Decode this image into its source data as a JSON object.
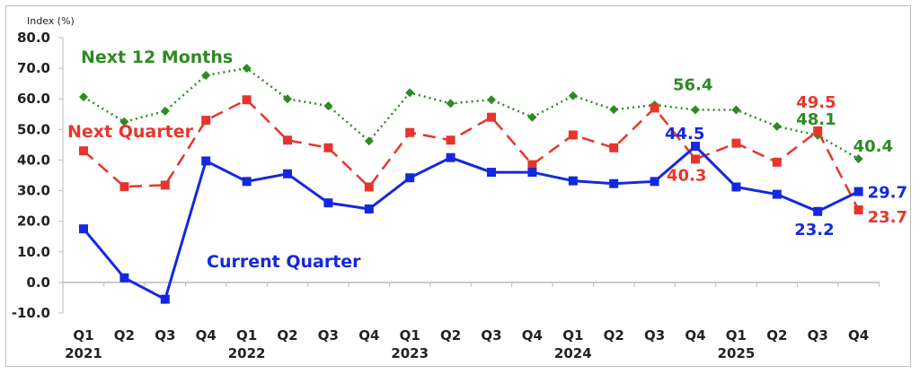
{
  "chart_data": {
    "type": "line",
    "title": "",
    "ylabel": "Index (%)",
    "ylim": [
      -10,
      80
    ],
    "yticks": [
      "80.0",
      "70.0",
      "60.0",
      "50.0",
      "40.0",
      "30.0",
      "20.0",
      "10.0",
      "0.0",
      "-10.0"
    ],
    "ytick_values": [
      80,
      70,
      60,
      50,
      40,
      30,
      20,
      10,
      0,
      -10
    ],
    "quarters": [
      "Q1",
      "Q2",
      "Q3",
      "Q4",
      "Q1",
      "Q2",
      "Q3",
      "Q4",
      "Q1",
      "Q2",
      "Q3",
      "Q4",
      "Q1",
      "Q2",
      "Q3",
      "Q4",
      "Q1",
      "Q2",
      "Q3",
      "Q4"
    ],
    "years": [
      {
        "label": "2021",
        "index": 0
      },
      {
        "label": "2022",
        "index": 4
      },
      {
        "label": "2023",
        "index": 8
      },
      {
        "label": "2024",
        "index": 12
      },
      {
        "label": "2025",
        "index": 16
      }
    ],
    "grid": false,
    "legend": "inline labels",
    "series": [
      {
        "name": "Next 12 Months",
        "color": "#2e8b22",
        "style": "dotted",
        "marker": "diamond",
        "values": [
          60.6,
          52.5,
          56.0,
          67.7,
          70.0,
          60.0,
          57.7,
          46.2,
          62.0,
          58.5,
          59.7,
          54.0,
          61.0,
          56.5,
          58.0,
          56.4,
          56.4,
          51.0,
          48.1,
          40.4
        ],
        "labels": [
          {
            "index": 15,
            "text": "56.4"
          },
          {
            "index": 18,
            "text": "48.1"
          },
          {
            "index": 19,
            "text": "40.4"
          }
        ]
      },
      {
        "name": "Next Quarter",
        "color": "#e8352b",
        "style": "dashed",
        "marker": "square",
        "values": [
          43.0,
          31.3,
          31.8,
          53.0,
          59.7,
          46.5,
          44.0,
          31.2,
          49.0,
          46.5,
          54.0,
          38.5,
          48.2,
          44.0,
          57.0,
          40.3,
          45.5,
          39.3,
          49.5,
          23.7
        ],
        "labels": [
          {
            "index": 15,
            "text": "40.3"
          },
          {
            "index": 18,
            "text": "49.5"
          },
          {
            "index": 19,
            "text": "23.7"
          }
        ]
      },
      {
        "name": "Current Quarter",
        "color": "#1428e0",
        "style": "solid",
        "marker": "square",
        "values": [
          17.5,
          1.5,
          -5.5,
          39.7,
          33.0,
          35.5,
          26.0,
          24.0,
          34.2,
          40.8,
          36.0,
          36.0,
          33.2,
          32.3,
          33.0,
          44.5,
          31.2,
          28.8,
          23.2,
          29.7
        ],
        "labels": [
          {
            "index": 15,
            "text": "44.5"
          },
          {
            "index": 18,
            "text": "23.2"
          },
          {
            "index": 19,
            "text": "29.7"
          }
        ]
      }
    ]
  }
}
